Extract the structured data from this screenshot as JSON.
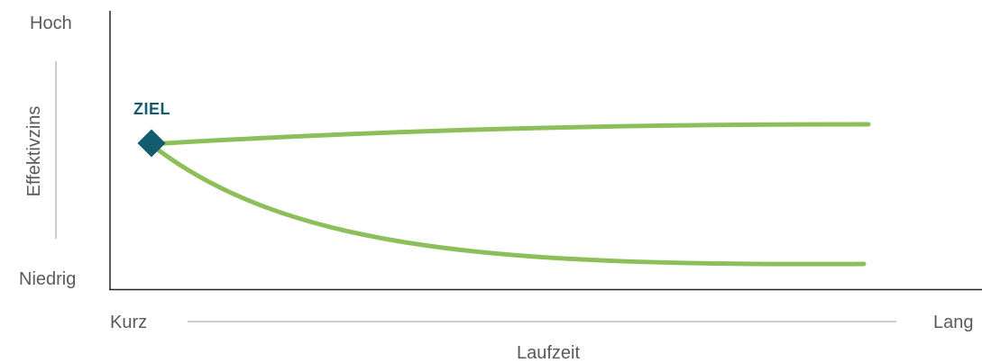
{
  "axes": {
    "y_title": "Effektivzins",
    "y_high": "Hoch",
    "y_low": "Niedrig",
    "x_title": "Laufzeit",
    "x_short": "Kurz",
    "x_long": "Lang"
  },
  "target": {
    "label": "ZIEL"
  },
  "colors": {
    "curve": "#8cbf5a",
    "marker": "#145b6e",
    "axis": "#222222",
    "guide": "#999999",
    "text": "#5a5a5a"
  }
}
